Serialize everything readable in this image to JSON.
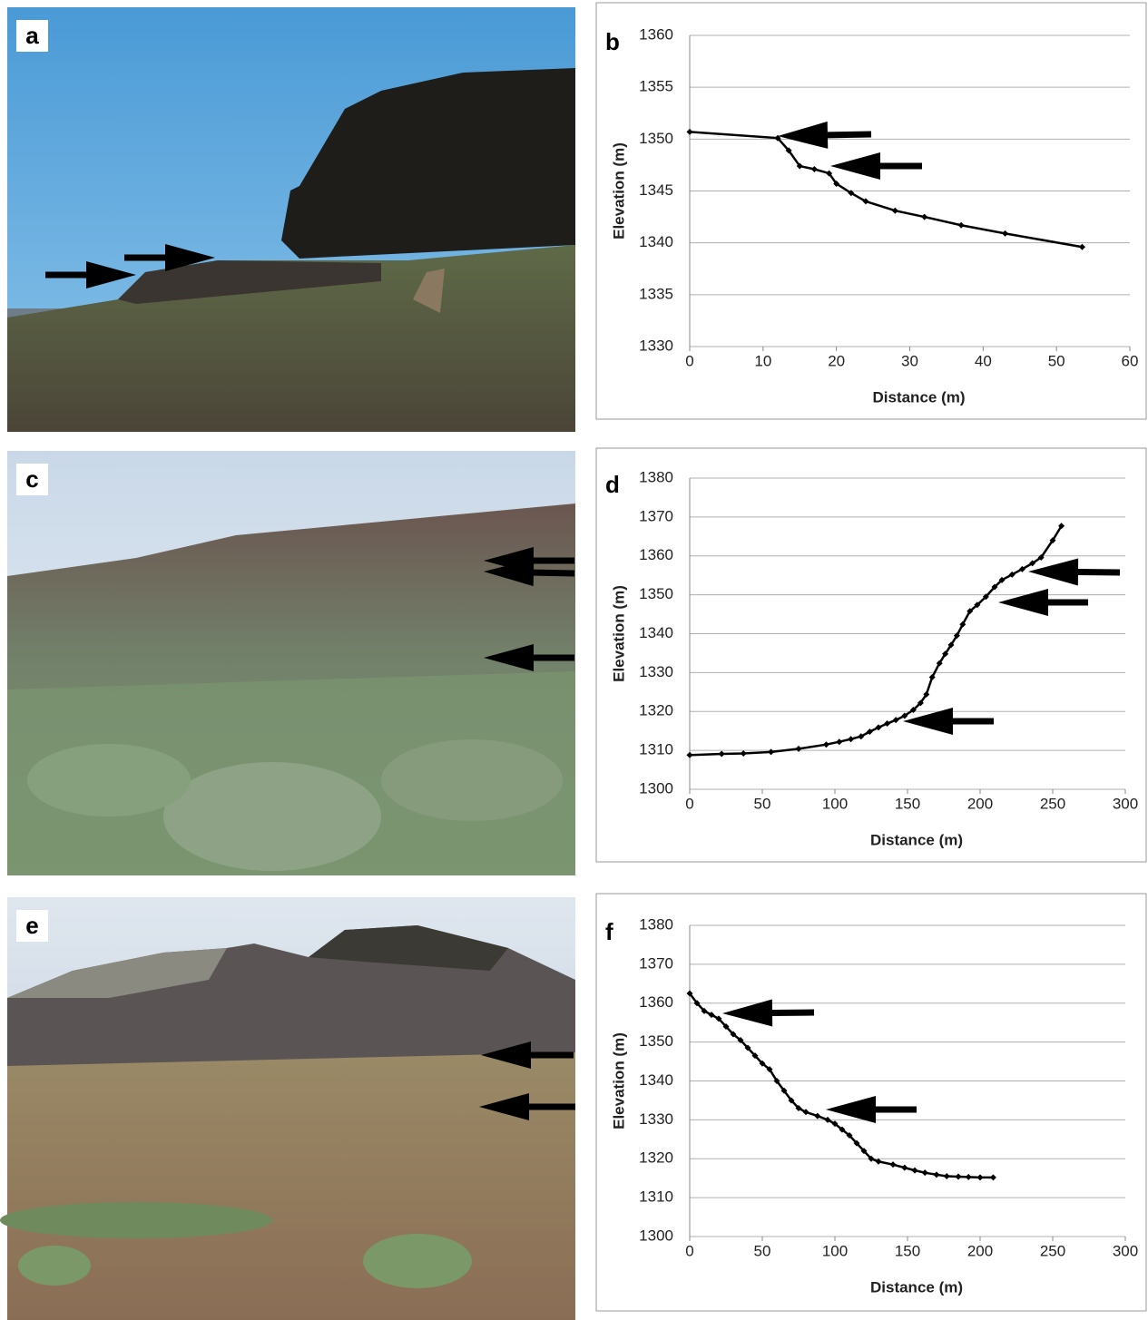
{
  "photos": [
    {
      "label": "a"
    },
    {
      "label": "c"
    },
    {
      "label": "e"
    }
  ],
  "chart_data": [
    {
      "type": "line",
      "panel_label": "b",
      "x_label": "Distance (m)",
      "y_label": "Elevation (m)",
      "grid": true,
      "xlim": [
        0,
        60
      ],
      "xticks": [
        0,
        10,
        20,
        30,
        40,
        50,
        60
      ],
      "ylim": [
        1330,
        1360
      ],
      "yticks": [
        1330,
        1335,
        1340,
        1345,
        1350,
        1355,
        1360
      ],
      "x": [
        0,
        12,
        13.5,
        15,
        17,
        19,
        20,
        22,
        24,
        28,
        32,
        37,
        43,
        53.5
      ],
      "series": [
        {
          "color": "#000000",
          "values": [
            1350.7,
            1350.1,
            1348.9,
            1347.4,
            1347.1,
            1346.7,
            1345.7,
            1344.8,
            1344.0,
            1343.1,
            1342.5,
            1341.7,
            1340.9,
            1339.6
          ]
        }
      ]
    },
    {
      "type": "line",
      "panel_label": "d",
      "x_label": "Distance (m)",
      "y_label": "Elevation (m)",
      "grid": true,
      "xlim": [
        0,
        300
      ],
      "xticks": [
        0,
        50,
        100,
        150,
        200,
        250,
        300
      ],
      "ylim": [
        1300,
        1380
      ],
      "yticks": [
        1300,
        1310,
        1320,
        1330,
        1340,
        1350,
        1360,
        1370,
        1380
      ],
      "x": [
        0,
        22,
        37,
        56,
        75,
        94,
        103,
        111,
        118,
        124,
        130,
        136,
        142,
        148,
        154,
        159,
        163,
        167,
        172,
        176,
        180,
        184,
        188,
        193,
        198,
        204,
        210,
        215,
        222,
        229,
        236,
        242,
        250,
        256
      ],
      "series": [
        {
          "color": "#000000",
          "values": [
            1308.8,
            1309.1,
            1309.2,
            1309.6,
            1310.4,
            1311.5,
            1312.2,
            1312.9,
            1313.6,
            1314.8,
            1315.9,
            1316.9,
            1317.8,
            1318.9,
            1320.4,
            1322.2,
            1324.4,
            1328.8,
            1332.4,
            1334.8,
            1337.1,
            1339.5,
            1342.4,
            1345.8,
            1347.4,
            1349.5,
            1352.0,
            1353.8,
            1355.2,
            1356.6,
            1358.1,
            1359.6,
            1364.0,
            1367.7
          ]
        }
      ]
    },
    {
      "type": "line",
      "panel_label": "f",
      "x_label": "Distance (m)",
      "y_label": "Elevation (m)",
      "grid": true,
      "xlim": [
        0,
        300
      ],
      "xticks": [
        0,
        50,
        100,
        150,
        200,
        250,
        300
      ],
      "ylim": [
        1300,
        1380
      ],
      "yticks": [
        1300,
        1310,
        1320,
        1330,
        1340,
        1350,
        1360,
        1370,
        1380
      ],
      "x": [
        0,
        5,
        10,
        15,
        20,
        25,
        30,
        35,
        40,
        45,
        50,
        55,
        60,
        65,
        70,
        75,
        80,
        88,
        95,
        100,
        105,
        110,
        115,
        120,
        125,
        130,
        140,
        148,
        155,
        162,
        170,
        177,
        185,
        192,
        200,
        209
      ],
      "series": [
        {
          "color": "#000000",
          "values": [
            1362.5,
            1360,
            1358,
            1357,
            1356,
            1354,
            1352,
            1350.5,
            1348.5,
            1346.5,
            1344.5,
            1343,
            1340,
            1337.5,
            1335,
            1333,
            1332,
            1331,
            1330,
            1329,
            1327.5,
            1326,
            1324,
            1322,
            1320,
            1319.3,
            1318.5,
            1317.7,
            1317,
            1316.4,
            1315.9,
            1315.5,
            1315.4,
            1315.3,
            1315.2,
            1315.2
          ]
        }
      ]
    }
  ]
}
